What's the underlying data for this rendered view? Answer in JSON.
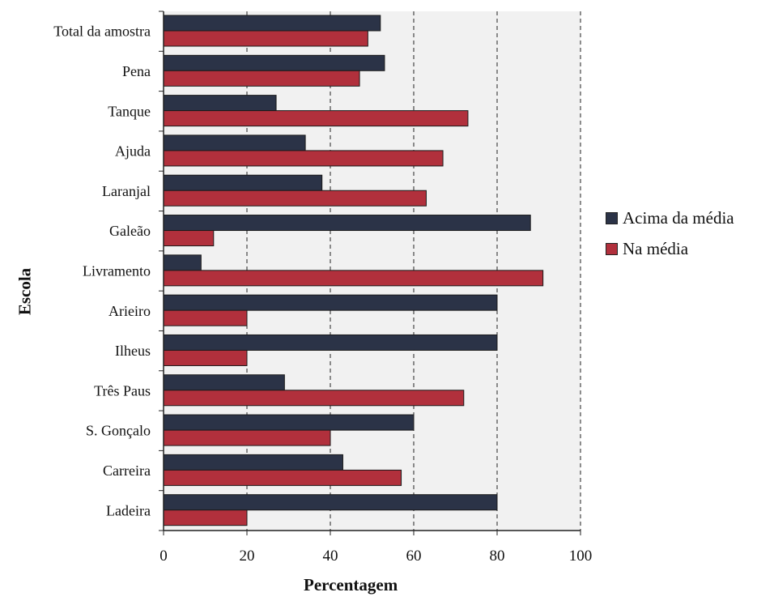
{
  "chart_data": {
    "type": "bar",
    "orientation": "horizontal",
    "categories": [
      "Total da amostra",
      "Pena",
      "Tanque",
      "Ajuda",
      "Laranjal",
      "Galeão",
      "Livramento",
      "Arieiro",
      "Ilheus",
      "Três Paus",
      "S. Gonçalo",
      "Carreira",
      "Ladeira"
    ],
    "series": [
      {
        "name": "Acima da média",
        "color": "#2b3347",
        "values": [
          52,
          53,
          27,
          34,
          38,
          88,
          9,
          80,
          80,
          29,
          60,
          43,
          80
        ]
      },
      {
        "name": "Na média",
        "color": "#b1303c",
        "values": [
          49,
          47,
          73,
          67,
          63,
          12,
          91,
          20,
          20,
          72,
          40,
          57,
          20
        ]
      }
    ],
    "xlabel": "Percentagem",
    "ylabel": "Escola",
    "xlim": [
      0,
      100
    ],
    "xticks": [
      "0",
      "20",
      "40",
      "60",
      "80",
      "100"
    ],
    "grid": "vertical dashed",
    "legend_position": "right"
  }
}
